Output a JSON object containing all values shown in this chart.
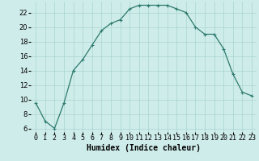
{
  "x": [
    0,
    1,
    2,
    3,
    4,
    5,
    6,
    7,
    8,
    9,
    10,
    11,
    12,
    13,
    14,
    15,
    16,
    17,
    18,
    19,
    20,
    21,
    22,
    23
  ],
  "y": [
    9.5,
    7.0,
    6.0,
    9.5,
    14.0,
    15.5,
    17.5,
    19.5,
    20.5,
    21.0,
    22.5,
    23.0,
    23.0,
    23.0,
    23.0,
    22.5,
    22.0,
    20.0,
    19.0,
    19.0,
    17.0,
    13.5,
    11.0,
    10.5
  ],
  "line_color": "#2d7a6e",
  "marker": "+",
  "marker_size": 3,
  "marker_linewidth": 0.8,
  "bg_color": "#ceecea",
  "grid_color": "#a8d5d1",
  "xlabel": "Humidex (Indice chaleur)",
  "xlabel_fontsize": 7,
  "ylabel_ticks": [
    6,
    8,
    10,
    12,
    14,
    16,
    18,
    20,
    22
  ],
  "xlim": [
    -0.5,
    23.5
  ],
  "ylim": [
    5.5,
    23.5
  ],
  "xtick_labels": [
    "0",
    "1",
    "2",
    "3",
    "4",
    "5",
    "6",
    "7",
    "8",
    "9",
    "10",
    "11",
    "12",
    "13",
    "14",
    "15",
    "16",
    "17",
    "18",
    "19",
    "20",
    "21",
    "22",
    "23"
  ],
  "tick_fontsize": 6,
  "linewidth": 0.9
}
